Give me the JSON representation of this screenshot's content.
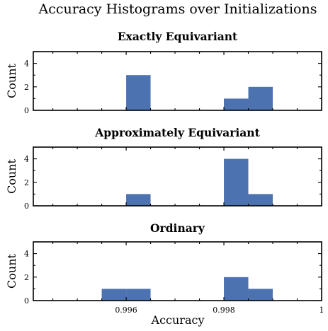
{
  "chart_data": {
    "type": "bar",
    "suptitle": "Accuracy Histograms over Initializations",
    "xlabel": "Accuracy",
    "ylabel": "Count",
    "xlim": [
      0.9941,
      1.0
    ],
    "ylim": [
      0,
      5
    ],
    "xticks": [
      0.996,
      0.998,
      1.0
    ],
    "xtick_labels": [
      "0.996",
      "0.998",
      "1"
    ],
    "yticks": [
      0,
      2,
      4
    ],
    "bin_width": 0.0005,
    "color": "#4c72b0",
    "panels": [
      {
        "title": "Exactly Equivariant",
        "bins": [
          [
            0.996,
            0.9965
          ],
          [
            0.998,
            0.9985
          ],
          [
            0.9985,
            0.999
          ]
        ],
        "counts": [
          3,
          1,
          2
        ]
      },
      {
        "title": "Approximately Equivariant",
        "bins": [
          [
            0.996,
            0.9965
          ],
          [
            0.998,
            0.9985
          ],
          [
            0.9985,
            0.999
          ]
        ],
        "counts": [
          1,
          4,
          1
        ]
      },
      {
        "title": "Ordinary",
        "bins": [
          [
            0.9955,
            0.996
          ],
          [
            0.996,
            0.9965
          ],
          [
            0.998,
            0.9985
          ],
          [
            0.9985,
            0.999
          ]
        ],
        "counts": [
          1,
          1,
          2,
          1
        ]
      }
    ]
  }
}
